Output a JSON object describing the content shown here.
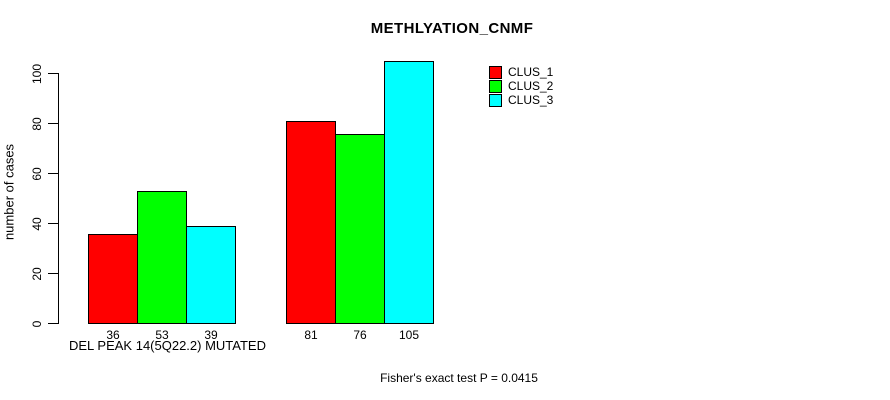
{
  "chart_data": {
    "type": "bar",
    "title": "METHLYATION_CNMF",
    "ylabel": "number of cases",
    "xlabel": "DEL PEAK 14(5Q22.2) MUTATED",
    "categories": [
      "DEL PEAK 14(5Q22.2) MUTATED",
      ""
    ],
    "series": [
      {
        "name": "CLUS_1",
        "color": "#ff0000",
        "values": [
          36,
          81
        ]
      },
      {
        "name": "CLUS_2",
        "color": "#00ff00",
        "values": [
          53,
          76
        ]
      },
      {
        "name": "CLUS_3",
        "color": "#00ffff",
        "values": [
          39,
          105
        ]
      }
    ],
    "yticks": [
      0,
      20,
      40,
      60,
      80,
      100
    ],
    "ylim": [
      0,
      105
    ],
    "bar_value_labels": [
      [
        36,
        53,
        39
      ],
      [
        81,
        76,
        105
      ]
    ],
    "legend_position": "top-right",
    "grid": false,
    "footnote": "Fisher's exact test P = 0.0415"
  }
}
